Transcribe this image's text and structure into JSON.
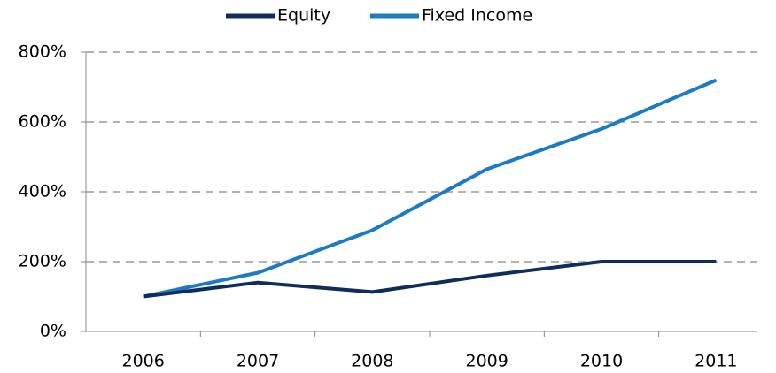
{
  "chart_data": {
    "type": "line",
    "categories": [
      "2006",
      "2007",
      "2008",
      "2009",
      "2010",
      "2011"
    ],
    "series": [
      {
        "name": "Equity",
        "color": "#0f2d5c",
        "values": [
          100,
          140,
          113,
          160,
          200,
          200
        ]
      },
      {
        "name": "Fixed Income",
        "color": "#1b7bc4",
        "values": [
          100,
          168,
          290,
          465,
          580,
          720
        ]
      }
    ],
    "ylim": [
      0,
      800
    ],
    "yticks": [
      {
        "value": 0,
        "label": "0%"
      },
      {
        "value": 200,
        "label": "200%"
      },
      {
        "value": 400,
        "label": "400%"
      },
      {
        "value": 600,
        "label": "600%"
      },
      {
        "value": 800,
        "label": "800%"
      }
    ],
    "grid": true,
    "legend": "top"
  }
}
